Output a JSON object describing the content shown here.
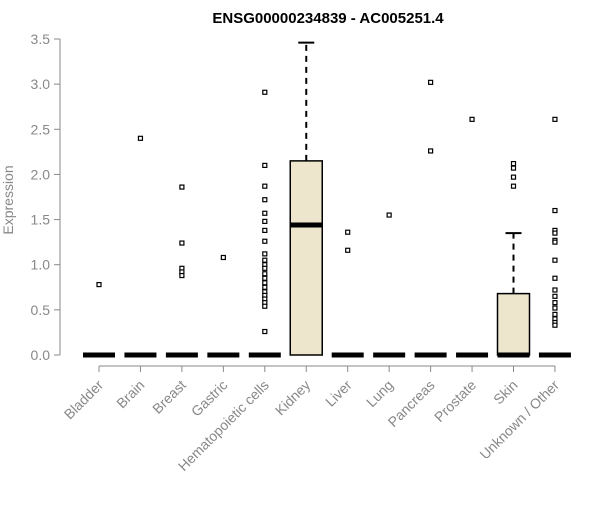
{
  "chart_data": {
    "type": "box",
    "title": "ENSG00000234839 - AC005251.4",
    "ylabel": "Expression",
    "xlabel": "",
    "ylim": [
      0,
      3.5
    ],
    "yticks": [
      "0.0",
      "0.5",
      "1.0",
      "1.5",
      "2.0",
      "2.5",
      "3.0",
      "3.5"
    ],
    "grid": false,
    "colors": {
      "box_fill": "#ede6cc",
      "stroke": "#000000",
      "axis_text": "#888888"
    },
    "categories": [
      "Bladder",
      "Brain",
      "Breast",
      "Gastric",
      "Hematopoietic cells",
      "Kidney",
      "Liver",
      "Lung",
      "Pancreas",
      "Prostate",
      "Skin",
      "Unknown / Other"
    ],
    "boxes": [
      {
        "category": "Bladder",
        "q1": 0,
        "median": 0,
        "q3": 0,
        "whisker_low": 0,
        "whisker_high": 0,
        "outliers": [
          0.78
        ]
      },
      {
        "category": "Brain",
        "q1": 0,
        "median": 0,
        "q3": 0,
        "whisker_low": 0,
        "whisker_high": 0,
        "outliers": [
          2.4
        ]
      },
      {
        "category": "Breast",
        "q1": 0,
        "median": 0,
        "q3": 0,
        "whisker_low": 0,
        "whisker_high": 0,
        "outliers": [
          1.86,
          1.24,
          0.96,
          0.92,
          0.88
        ]
      },
      {
        "category": "Gastric",
        "q1": 0,
        "median": 0,
        "q3": 0,
        "whisker_low": 0,
        "whisker_high": 0,
        "outliers": [
          1.08
        ]
      },
      {
        "category": "Hematopoietic cells",
        "q1": 0,
        "median": 0,
        "q3": 0,
        "whisker_low": 0,
        "whisker_high": 0,
        "outliers": [
          2.91,
          2.1,
          1.87,
          1.72,
          1.57,
          1.48,
          1.38,
          1.26,
          1.12,
          1.05,
          1.0,
          0.96,
          0.9,
          0.85,
          0.8,
          0.75,
          0.7,
          0.66,
          0.62,
          0.58,
          0.54,
          0.26
        ]
      },
      {
        "category": "Kidney",
        "q1": 0,
        "median": 1.44,
        "q3": 2.15,
        "whisker_low": 0,
        "whisker_high": 3.46,
        "outliers": []
      },
      {
        "category": "Liver",
        "q1": 0,
        "median": 0,
        "q3": 0,
        "whisker_low": 0,
        "whisker_high": 0,
        "outliers": [
          1.36,
          1.16
        ]
      },
      {
        "category": "Lung",
        "q1": 0,
        "median": 0,
        "q3": 0,
        "whisker_low": 0,
        "whisker_high": 0,
        "outliers": [
          1.55
        ]
      },
      {
        "category": "Pancreas",
        "q1": 0,
        "median": 0,
        "q3": 0,
        "whisker_low": 0,
        "whisker_high": 0,
        "outliers": [
          3.02,
          2.26
        ]
      },
      {
        "category": "Prostate",
        "q1": 0,
        "median": 0,
        "q3": 0,
        "whisker_low": 0,
        "whisker_high": 0,
        "outliers": [
          2.61
        ]
      },
      {
        "category": "Skin",
        "q1": 0,
        "median": 0,
        "q3": 0.68,
        "whisker_low": 0,
        "whisker_high": 1.35,
        "outliers": [
          2.12,
          2.07,
          1.97,
          1.87
        ]
      },
      {
        "category": "Unknown / Other",
        "q1": 0,
        "median": 0,
        "q3": 0,
        "whisker_low": 0,
        "whisker_high": 0,
        "outliers": [
          2.61,
          1.6,
          1.38,
          1.35,
          1.27,
          1.25,
          1.05,
          0.85,
          0.72,
          0.65,
          0.58,
          0.52,
          0.45,
          0.4,
          0.36,
          0.33
        ]
      }
    ]
  }
}
